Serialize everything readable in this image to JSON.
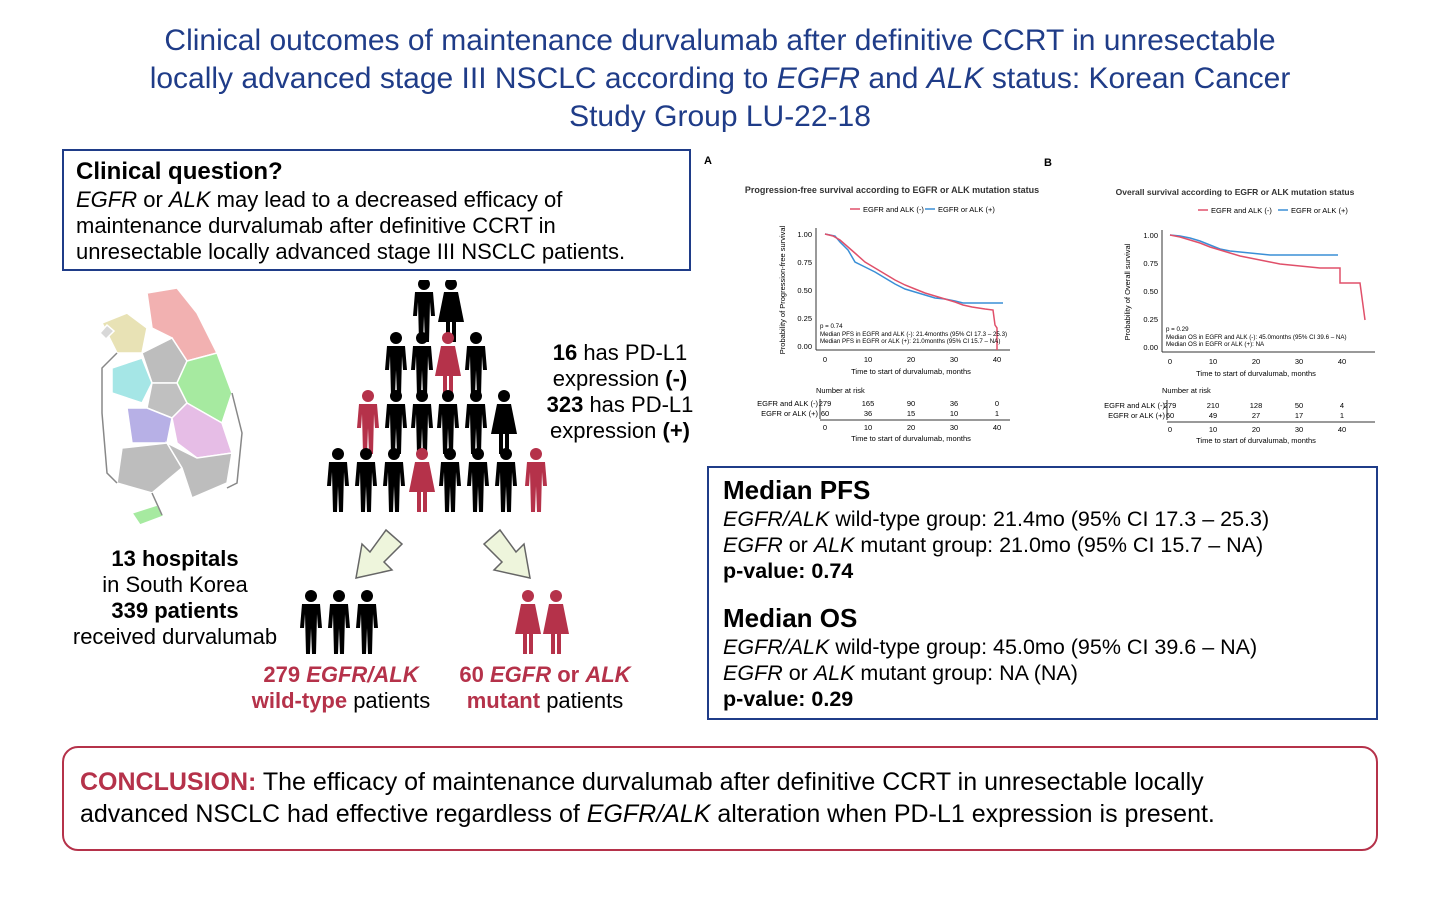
{
  "title": {
    "line1": "Clinical outcomes of maintenance durvalumab after definitive CCRT in unresectable",
    "line2_a": "locally advanced stage III NSCLC according to ",
    "line2_egfr": "EGFR",
    "line2_and": " and ",
    "line2_alk": "ALK",
    "line2_b": " status: Korean Cancer",
    "line3": "Study Group LU-22-18"
  },
  "clinical_question": {
    "heading": "Clinical question?",
    "egfr": "EGFR",
    "or": " or ",
    "alk": "ALK",
    "text1": " may lead to a decreased efficacy of",
    "text2": "maintenance durvalumab after definitive CCRT in",
    "text3": "unresectable locally advanced stage III NSCLC patients."
  },
  "hospitals": {
    "count": "13 hospitals",
    "location": "in South Korea",
    "patients": "339 patients",
    "received": "received durvalumab"
  },
  "pdl1": {
    "neg_n": "16",
    "neg_text": " has PD-L1",
    "neg_text2": "expression ",
    "neg_sign": "(-)",
    "pos_n": "323",
    "pos_text": " has PD-L1",
    "pos_text2": "expression ",
    "pos_sign": "(+)"
  },
  "groups": {
    "wild_n": "279 ",
    "wild_gene": "EGFR/ALK",
    "wild_type": "wild-type",
    "patients": " patients",
    "mut_n": "60 ",
    "mut_egfr": "EGFR",
    "mut_or": " or ",
    "mut_alk": "ALK",
    "mut_type": "mutant"
  },
  "km": {
    "a_label": "A",
    "b_label": "B",
    "a_title": "Progression-free survival according to EGFR or ALK mutation status",
    "b_title": "Overall survival according to EGFR or ALK mutation status",
    "legend_neg": "EGFR and ALK (-)",
    "legend_pos": "EGFR or ALK (+)",
    "a_ylabel": "Probability of Progression-free survival",
    "b_ylabel": "Probability of Overall survival",
    "xlabel": "Time to start of durvalumab, months",
    "a_p": "p = 0.74",
    "a_med1": "Median PFS in EGFR and ALK (-): 21.4months (95% CI 17.3 – 25.3)",
    "a_med2": "Median PFS in EGFR or ALK (+): 21.0months (95% CI 15.7 – NA)",
    "b_p": "p = 0.29",
    "b_med1": "Median OS in EGFR and ALK (-): 45.0months (95% CI 39.6 – NA)",
    "b_med2": "Median OS in EGFR or ALK (+): NA",
    "risk_label": "Number at risk",
    "risk_row_neg": "EGFR and ALK (-)",
    "risk_row_pos": "EGFR or ALK (+)",
    "yticks": [
      "1.00",
      "0.75",
      "0.50",
      "0.25",
      "0.00"
    ],
    "xticks": [
      "0",
      "10",
      "20",
      "30",
      "40"
    ],
    "a_risk_neg": [
      "279",
      "165",
      "90",
      "36",
      "0"
    ],
    "a_risk_pos": [
      "60",
      "36",
      "15",
      "10",
      "1"
    ],
    "b_risk_neg": [
      "279",
      "210",
      "128",
      "50",
      "4"
    ],
    "b_risk_pos": [
      "60",
      "49",
      "27",
      "17",
      "1"
    ]
  },
  "results": {
    "pfs_heading": "Median PFS",
    "pfs_wt_gene": "EGFR/ALK",
    "pfs_wt_text": " wild-type group: 21.4mo (95% CI 17.3 – 25.3)",
    "pfs_mut_egfr": "EGFR",
    "pfs_mut_or": " or ",
    "pfs_mut_alk": "ALK",
    "pfs_mut_text": " mutant group: 21.0mo (95% CI 15.7 – NA)",
    "pfs_p": "p-value: 0.74",
    "os_heading": "Median OS",
    "os_wt_gene": "EGFR/ALK",
    "os_wt_text": " wild-type group: 45.0mo (95% CI 39.6 – NA)",
    "os_mut_egfr": "EGFR",
    "os_mut_or": " or ",
    "os_mut_alk": "ALK",
    "os_mut_text": " mutant group: NA (NA)",
    "os_p": "p-value: 0.29"
  },
  "conclusion": {
    "label": "CONCLUSION:",
    "text1": " The efficacy of maintenance durvalumab after definitive CCRT in unresectable locally",
    "text2a": "advanced NSCLC had effective regardless of ",
    "text2_gene": "EGFR/ALK",
    "text2b": " alteration when PD-L1 expression is present."
  },
  "colors": {
    "title": "#1f3c88",
    "accent_red": "#b5324a",
    "curve_red": "#e0506a",
    "curve_blue": "#3a8fd6"
  }
}
